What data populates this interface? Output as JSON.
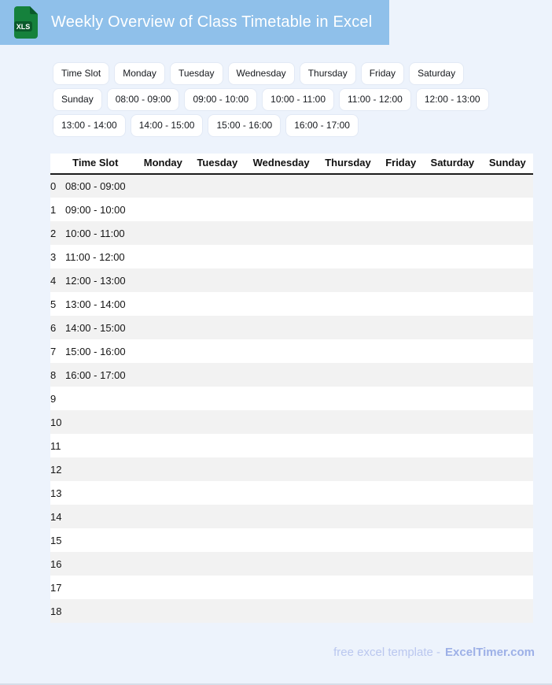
{
  "theme": {
    "header_bar": "#8fc0ea",
    "page_bg": "#edf3fc",
    "stripe": "#f2f2f2",
    "chip_border": "#e2e9f5",
    "text_dark": "#151515",
    "footer_text": "#bac7ef",
    "footer_brand": "#9db0e7",
    "icon_body": "#15813c",
    "icon_dark": "#0a5a2b",
    "underline": "#1c1c1c",
    "bottom_line": "#d6dde8"
  },
  "header": {
    "title": "Weekly Overview of Class Timetable in Excel",
    "icon": {
      "label": "XLS"
    }
  },
  "chips": {
    "rows": [
      [
        "Time Slot",
        "Monday",
        "Tuesday",
        "Wednesday",
        "Thursday",
        "Friday",
        "Saturday"
      ],
      [
        "Sunday",
        "08:00 - 09:00",
        "09:00 - 10:00",
        "10:00 - 11:00",
        "11:00 - 12:00",
        "12:00 - 13:00"
      ],
      [
        "13:00 - 14:00",
        "14:00 - 15:00",
        "15:00 - 16:00",
        "16:00 - 17:00"
      ]
    ]
  },
  "table": {
    "columns": [
      "Time Slot",
      "Monday",
      "Tuesday",
      "Wednesday",
      "Thursday",
      "Friday",
      "Saturday",
      "Sunday"
    ],
    "rows": [
      {
        "index": "0",
        "time_slot": "08:00 - 09:00"
      },
      {
        "index": "1",
        "time_slot": "09:00 - 10:00"
      },
      {
        "index": "2",
        "time_slot": "10:00 - 11:00"
      },
      {
        "index": "3",
        "time_slot": "11:00 - 12:00"
      },
      {
        "index": "4",
        "time_slot": "12:00 - 13:00"
      },
      {
        "index": "5",
        "time_slot": "13:00 - 14:00"
      },
      {
        "index": "6",
        "time_slot": "14:00 - 15:00"
      },
      {
        "index": "7",
        "time_slot": "15:00 - 16:00"
      },
      {
        "index": "8",
        "time_slot": "16:00 - 17:00"
      },
      {
        "index": "9",
        "time_slot": ""
      },
      {
        "index": "10",
        "time_slot": ""
      },
      {
        "index": "11",
        "time_slot": ""
      },
      {
        "index": "12",
        "time_slot": ""
      },
      {
        "index": "13",
        "time_slot": ""
      },
      {
        "index": "14",
        "time_slot": ""
      },
      {
        "index": "15",
        "time_slot": ""
      },
      {
        "index": "16",
        "time_slot": ""
      },
      {
        "index": "17",
        "time_slot": ""
      },
      {
        "index": "18",
        "time_slot": ""
      }
    ]
  },
  "footer": {
    "text": "free excel template -",
    "brand": "ExcelTimer.com"
  }
}
